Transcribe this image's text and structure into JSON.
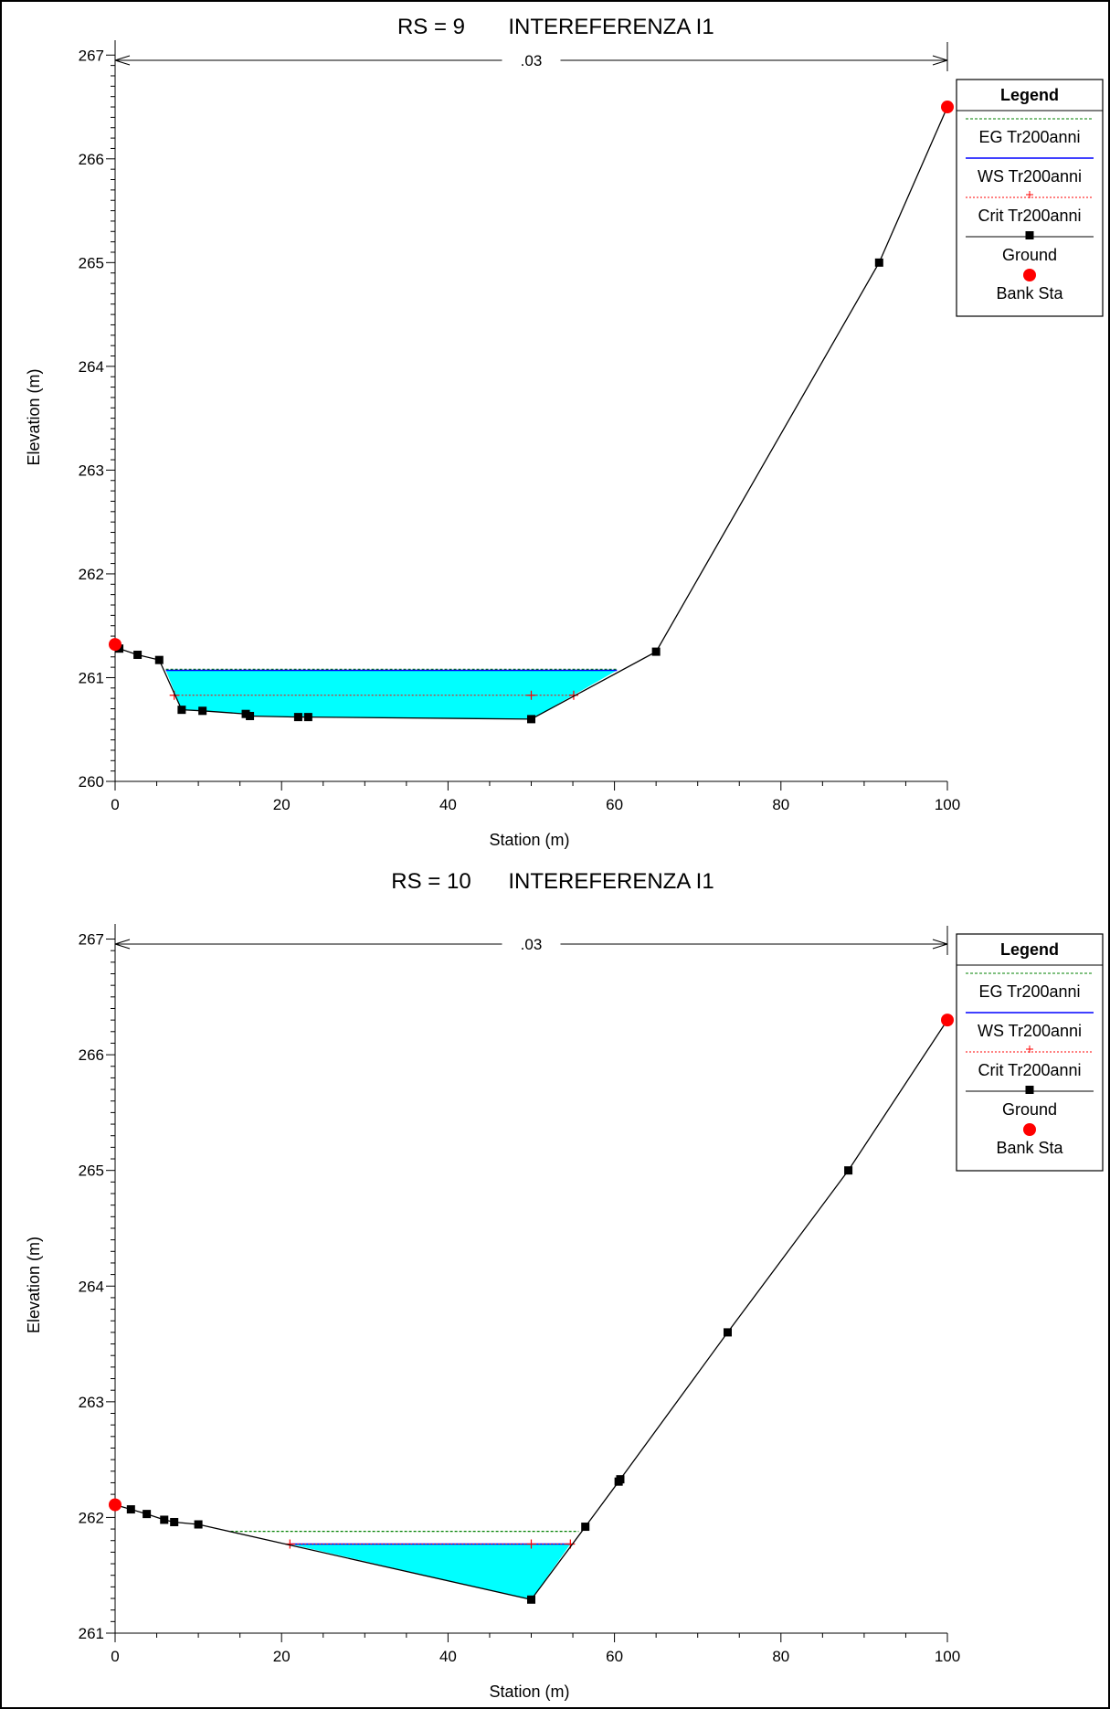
{
  "chart_data": [
    {
      "type": "line",
      "title_rs": "RS = 9",
      "title_name": "INTEREFERENZA I1",
      "xlabel": "Station (m)",
      "ylabel": "Elevation (m)",
      "xlim": [
        0,
        100
      ],
      "ylim": [
        260,
        267
      ],
      "x_ticks": [
        "0",
        "20",
        "40",
        "60",
        "80",
        "100"
      ],
      "y_ticks": [
        "260",
        "261",
        "262",
        "263",
        "264",
        "265",
        "266",
        "267"
      ],
      "mannings_n_label": ".03",
      "mannings_range": [
        0,
        100
      ],
      "legend": {
        "title": "Legend",
        "entries": [
          "EG Tr200anni",
          "WS Tr200anni",
          "Crit Tr200anni",
          "Ground",
          "Bank Sta"
        ]
      },
      "series": [
        {
          "name": "Ground",
          "color": "#000000",
          "x": [
            0,
            0.5,
            2.7,
            5.3,
            8,
            10.5,
            15.7,
            16.2,
            22,
            23.2,
            50,
            65,
            91.8,
            100
          ],
          "y": [
            261.32,
            261.28,
            261.22,
            261.17,
            260.69,
            260.68,
            260.65,
            260.63,
            260.62,
            260.62,
            260.6,
            261.25,
            265.0,
            266.5
          ]
        },
        {
          "name": "WS Tr200anni",
          "color": "#0000ff",
          "x": [
            6.1,
            60.3
          ],
          "y": [
            261.07,
            261.07
          ]
        },
        {
          "name": "EG Tr200anni",
          "color": "#008000",
          "x": [
            6.1,
            60.3
          ],
          "y": [
            261.08,
            261.08
          ]
        },
        {
          "name": "Crit Tr200anni",
          "color": "#ff0000",
          "x": [
            7.1,
            50,
            55.1
          ],
          "y": [
            260.83,
            260.83,
            260.83
          ]
        },
        {
          "name": "Bank Sta",
          "color": "#ff0000",
          "x": [
            0,
            100
          ],
          "y": [
            261.32,
            266.5
          ]
        }
      ],
      "water_fill_color": "#00ffff"
    },
    {
      "type": "line",
      "title_rs": "RS = 10",
      "title_name": "INTEREFERENZA I1",
      "xlabel": "Station (m)",
      "ylabel": "Elevation (m)",
      "xlim": [
        0,
        100
      ],
      "ylim": [
        261,
        267
      ],
      "x_ticks": [
        "0",
        "20",
        "40",
        "60",
        "80",
        "100"
      ],
      "y_ticks": [
        "261",
        "262",
        "263",
        "264",
        "265",
        "266",
        "267"
      ],
      "mannings_n_label": ".03",
      "mannings_range": [
        0,
        100
      ],
      "legend": {
        "title": "Legend",
        "entries": [
          "EG Tr200anni",
          "WS Tr200anni",
          "Crit Tr200anni",
          "Ground",
          "Bank Sta"
        ]
      },
      "series": [
        {
          "name": "Ground",
          "color": "#000000",
          "x": [
            0,
            1.9,
            3.8,
            5.9,
            7.1,
            10,
            50,
            56.5,
            60.5,
            60.7,
            73.6,
            88.1,
            100
          ],
          "y": [
            262.11,
            262.07,
            262.03,
            261.98,
            261.96,
            261.94,
            261.29,
            261.92,
            262.31,
            262.33,
            263.6,
            265.0,
            266.3
          ]
        },
        {
          "name": "WS Tr200anni",
          "color": "#0000ff",
          "x": [
            21.0,
            54.7
          ],
          "y": [
            261.77,
            261.77
          ]
        },
        {
          "name": "EG Tr200anni",
          "color": "#008000",
          "x": [
            13.9,
            55.7
          ],
          "y": [
            261.88,
            261.88
          ]
        },
        {
          "name": "Crit Tr200anni",
          "color": "#ff0000",
          "x": [
            21.0,
            50,
            54.7
          ],
          "y": [
            261.77,
            261.77,
            261.77
          ]
        },
        {
          "name": "Bank Sta",
          "color": "#ff0000",
          "x": [
            0,
            100
          ],
          "y": [
            262.11,
            266.3
          ]
        }
      ],
      "water_fill_color": "#00ffff"
    }
  ]
}
